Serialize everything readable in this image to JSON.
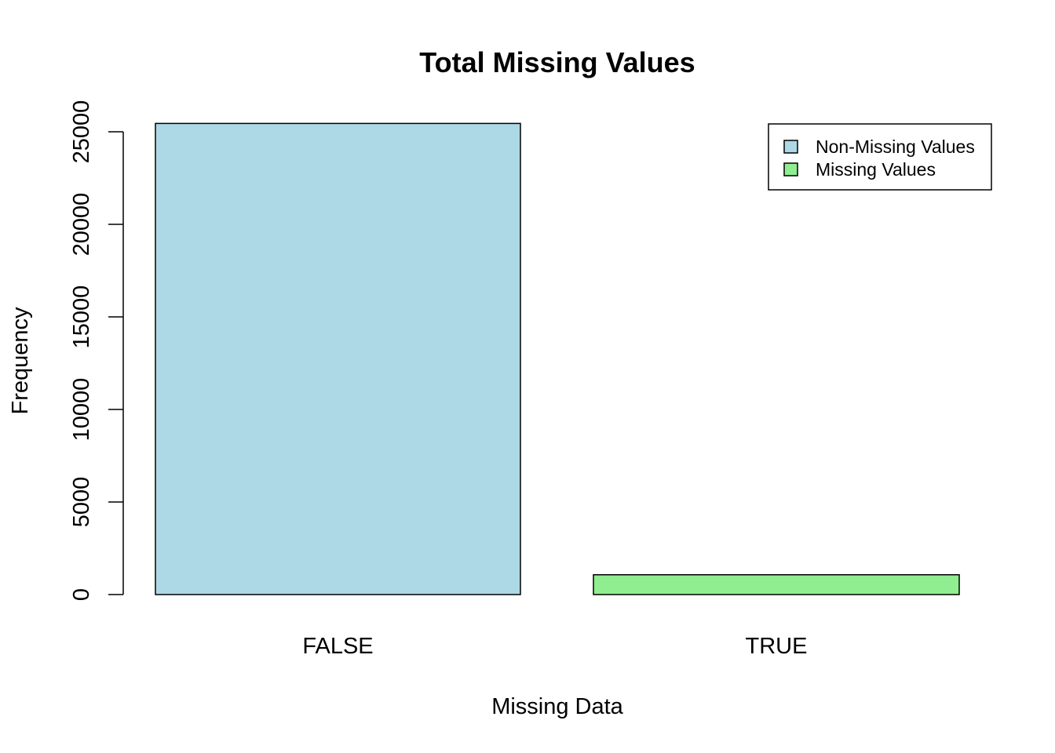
{
  "chart_data": {
    "type": "bar",
    "title": "Total Missing Values",
    "xlabel": "Missing Data",
    "ylabel": "Frequency",
    "categories": [
      "FALSE",
      "TRUE"
    ],
    "values": [
      25450,
      1070
    ],
    "colors": [
      "#ADD8E6",
      "#90EE90"
    ],
    "ylim": [
      0,
      25000
    ],
    "yticks": [
      0,
      5000,
      10000,
      15000,
      20000,
      25000
    ],
    "grid": false,
    "legend": {
      "position": "top-right",
      "items": [
        {
          "label": "Non-Missing Values",
          "color": "#ADD8E6"
        },
        {
          "label": "Missing Values",
          "color": "#90EE90"
        }
      ]
    }
  }
}
